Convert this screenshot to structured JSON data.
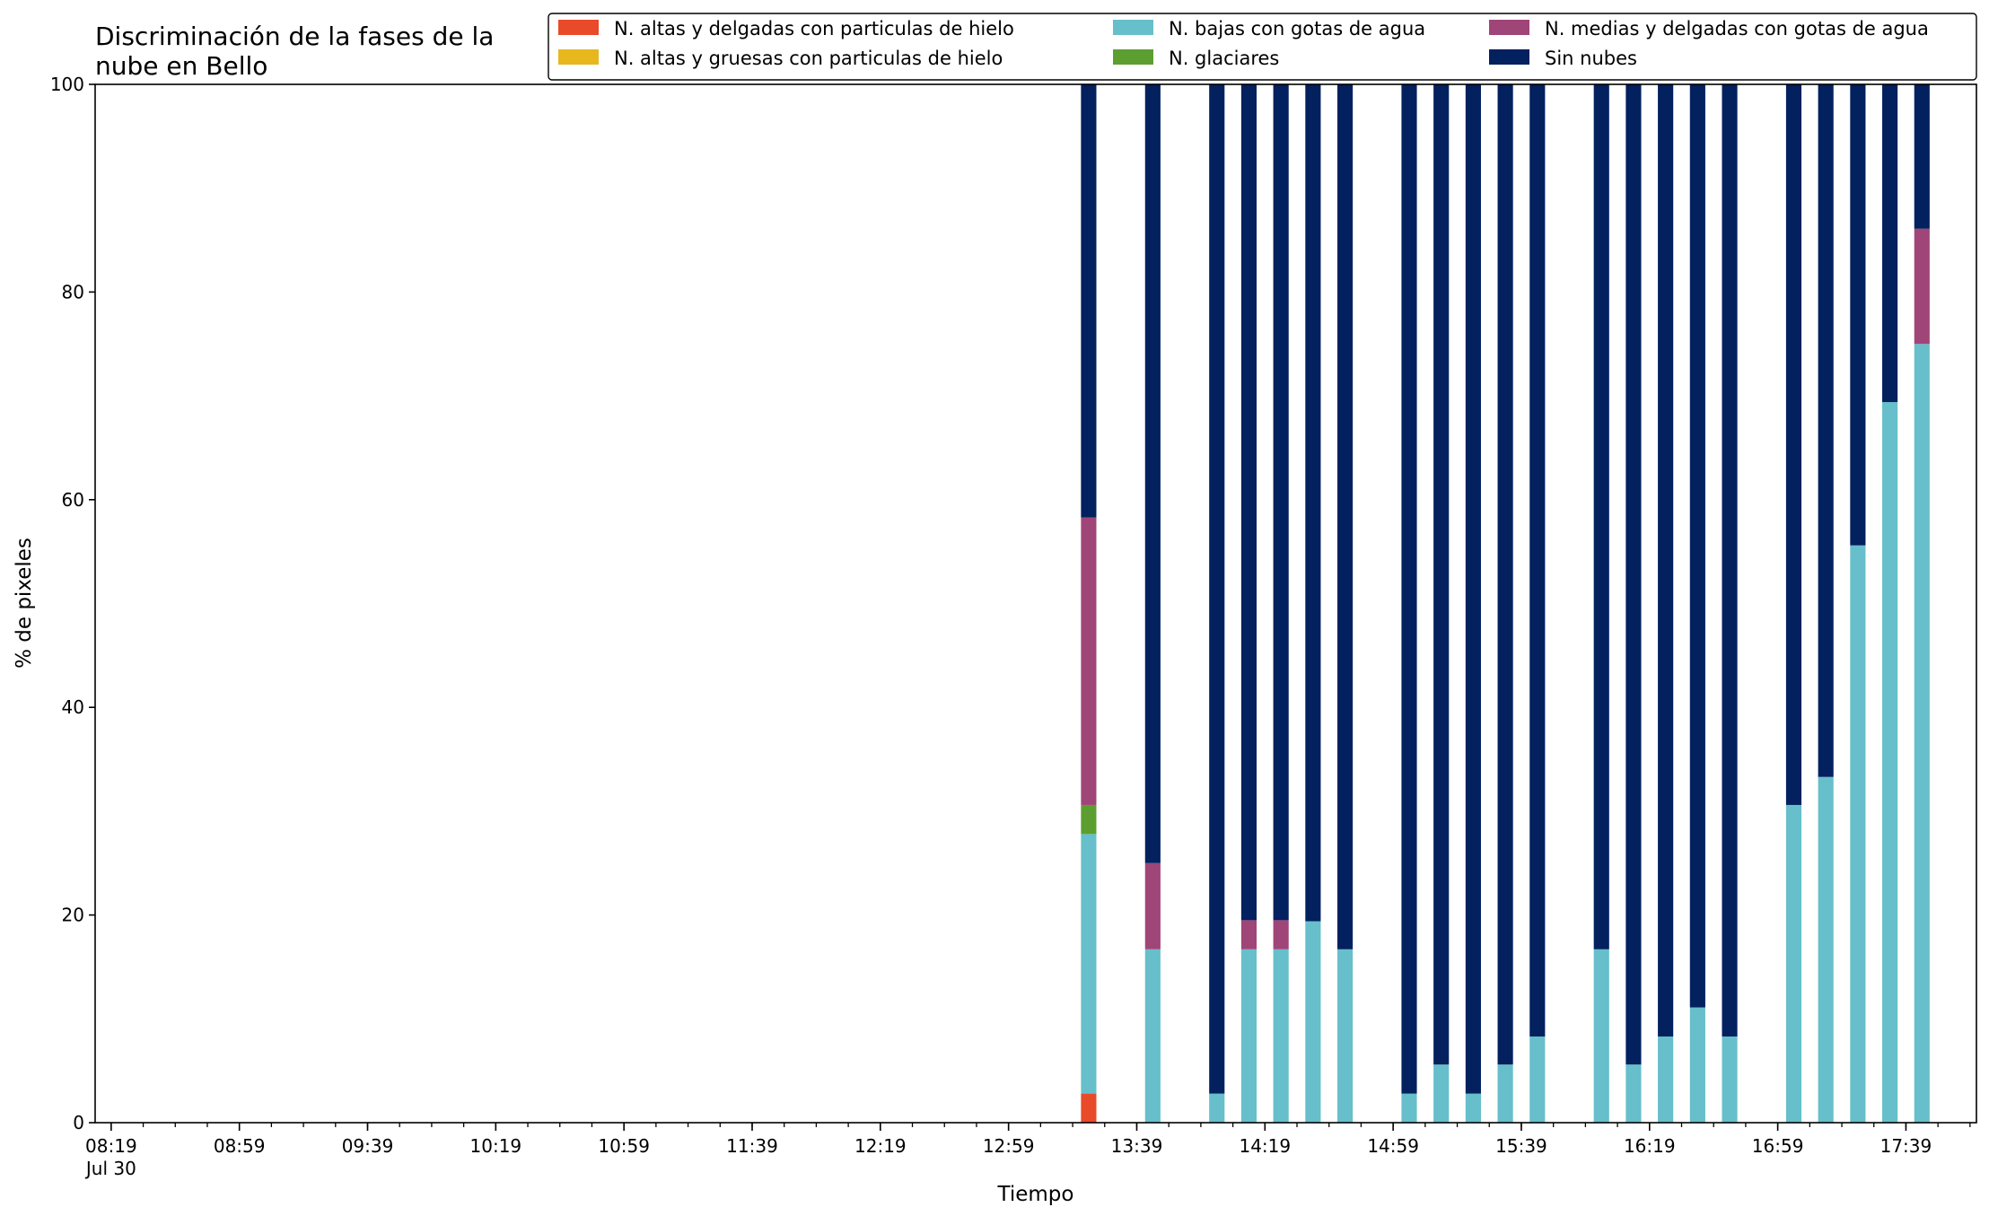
{
  "chart_data": {
    "type": "bar",
    "stacked": true,
    "title_lines": [
      "Discriminación de la fases de la",
      "nube en Bello"
    ],
    "xlabel": "Tiempo",
    "ylabel": "% de pixeles",
    "ylim": [
      0,
      100
    ],
    "yticks": [
      "0",
      "20",
      "40",
      "60",
      "80",
      "100"
    ],
    "x_range": [
      "08:14",
      "18:01"
    ],
    "x_major_ticks": [
      "08:19",
      "08:59",
      "09:39",
      "10:19",
      "10:59",
      "11:39",
      "12:19",
      "12:59",
      "13:39",
      "14:19",
      "14:59",
      "15:39",
      "16:19",
      "16:59",
      "17:39"
    ],
    "x_minor_interval_minutes": 10,
    "x_first_tick_sublabel": "Jul 30",
    "bar_width_minutes": 4.8,
    "grid": false,
    "legend_position": "top-right",
    "legend_columns": 3,
    "x": [
      "13:24",
      "13:44",
      "14:04",
      "14:14",
      "14:24",
      "14:34",
      "14:44",
      "15:04",
      "15:14",
      "15:24",
      "15:34",
      "15:44",
      "16:04",
      "16:14",
      "16:24",
      "16:34",
      "16:44",
      "17:04",
      "17:14",
      "17:24",
      "17:34",
      "17:44"
    ],
    "series": [
      {
        "name": "N. altas y delgadas con particulas de hielo",
        "color": "#e84a2a",
        "values": [
          2.8,
          0,
          0,
          0,
          0,
          0,
          0,
          0,
          0,
          0,
          0,
          0,
          0,
          0,
          0,
          0,
          0,
          0,
          0,
          0,
          0,
          0
        ]
      },
      {
        "name": "N. altas y gruesas con particulas de hielo",
        "color": "#e6b81e",
        "values": [
          0,
          0,
          0,
          0,
          0,
          0,
          0,
          0,
          0,
          0,
          0,
          0,
          0,
          0,
          0,
          0,
          0,
          0,
          0,
          0,
          0,
          0
        ]
      },
      {
        "name": "N. bajas con gotas de agua",
        "color": "#66bfca",
        "values": [
          25,
          16.7,
          2.8,
          16.7,
          16.7,
          19.4,
          16.7,
          2.8,
          5.6,
          2.8,
          5.6,
          8.3,
          16.7,
          5.6,
          8.3,
          11.1,
          8.3,
          30.6,
          33.3,
          55.6,
          69.4,
          75
        ]
      },
      {
        "name": "N. glaciares",
        "color": "#5d9e30",
        "values": [
          2.8,
          0,
          0,
          0,
          0,
          0,
          0,
          0,
          0,
          0,
          0,
          0,
          0,
          0,
          0,
          0,
          0,
          0,
          0,
          0,
          0,
          0
        ]
      },
      {
        "name": "N. medias y delgadas con gotas de agua",
        "color": "#a04578",
        "values": [
          27.7,
          8.3,
          0,
          2.8,
          2.8,
          0,
          0,
          0,
          0,
          0,
          0,
          0,
          0,
          0,
          0,
          0,
          0,
          0,
          0,
          0,
          0,
          11.1
        ]
      },
      {
        "name": "Sin nubes",
        "color": "#03205f",
        "values": [
          41.7,
          75,
          97.2,
          80.5,
          80.5,
          80.6,
          83.3,
          97.2,
          94.4,
          97.2,
          94.4,
          91.7,
          83.3,
          94.4,
          91.7,
          88.9,
          91.7,
          69.4,
          66.7,
          44.4,
          30.6,
          13.9
        ]
      }
    ]
  }
}
